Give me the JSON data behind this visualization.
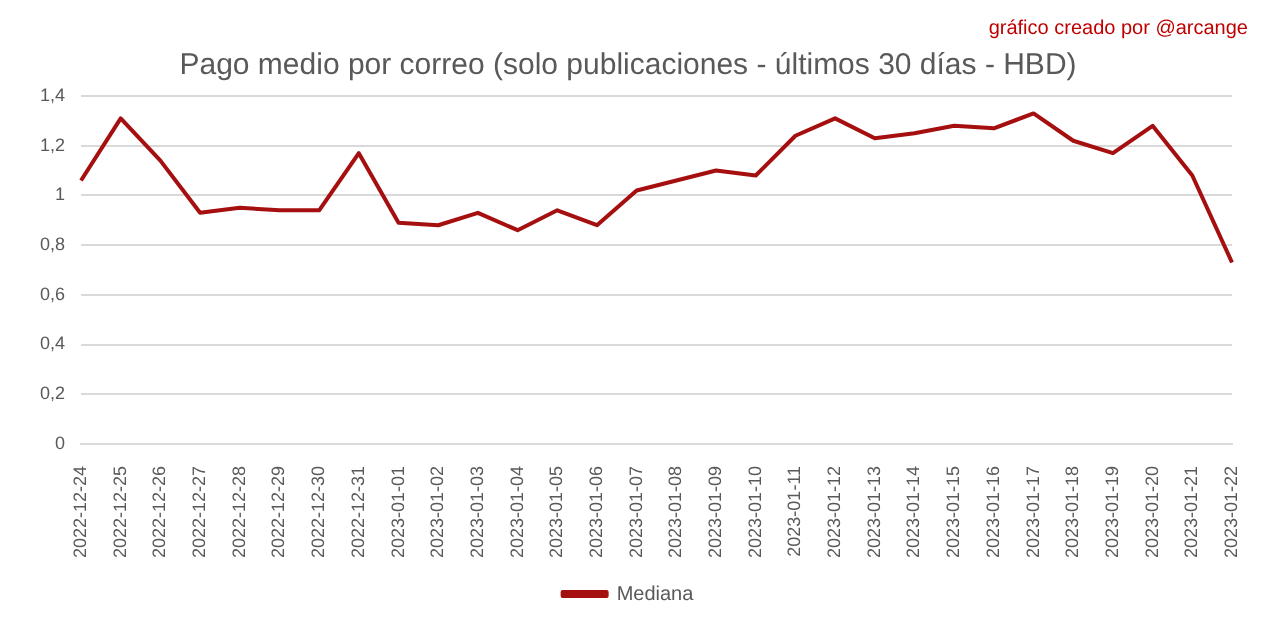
{
  "chart_data": {
    "type": "line",
    "title": "Pago medio por correo (solo publicaciones - últimos 30 días - HBD)",
    "annotations": [
      "gráfico creado por @arcange"
    ],
    "categories": [
      "2022-12-24",
      "2022-12-25",
      "2022-12-26",
      "2022-12-27",
      "2022-12-28",
      "2022-12-29",
      "2022-12-30",
      "2022-12-31",
      "2023-01-01",
      "2023-01-02",
      "2023-01-03",
      "2023-01-04",
      "2023-01-05",
      "2023-01-06",
      "2023-01-07",
      "2023-01-08",
      "2023-01-09",
      "2023-01-10",
      "2023-01-11",
      "2023-01-12",
      "2023-01-13",
      "2023-01-14",
      "2023-01-15",
      "2023-01-16",
      "2023-01-17",
      "2023-01-18",
      "2023-01-19",
      "2023-01-20",
      "2023-01-21",
      "2023-01-22"
    ],
    "series": [
      {
        "name": "Mediana",
        "color": "#a50f0f",
        "values": [
          1.06,
          1.31,
          1.14,
          0.93,
          0.95,
          0.94,
          0.94,
          1.17,
          0.89,
          0.88,
          0.93,
          0.86,
          0.94,
          0.88,
          1.02,
          1.06,
          1.1,
          1.08,
          1.24,
          1.31,
          1.23,
          1.25,
          1.28,
          1.27,
          1.33,
          1.22,
          1.17,
          1.28,
          1.08,
          0.73
        ]
      }
    ],
    "ylim": [
      0,
      1.4
    ],
    "yticks": [
      {
        "value": 0,
        "label": "0"
      },
      {
        "value": 0.2,
        "label": "0,2"
      },
      {
        "value": 0.4,
        "label": "0,4"
      },
      {
        "value": 0.6,
        "label": "0,6"
      },
      {
        "value": 0.8,
        "label": "0,8"
      },
      {
        "value": 1,
        "label": "1"
      },
      {
        "value": 1.2,
        "label": "1,2"
      },
      {
        "value": 1.4,
        "label": "1,4"
      }
    ],
    "grid": "y",
    "legend": "bottom",
    "marker": "none",
    "line_style": "solid"
  }
}
